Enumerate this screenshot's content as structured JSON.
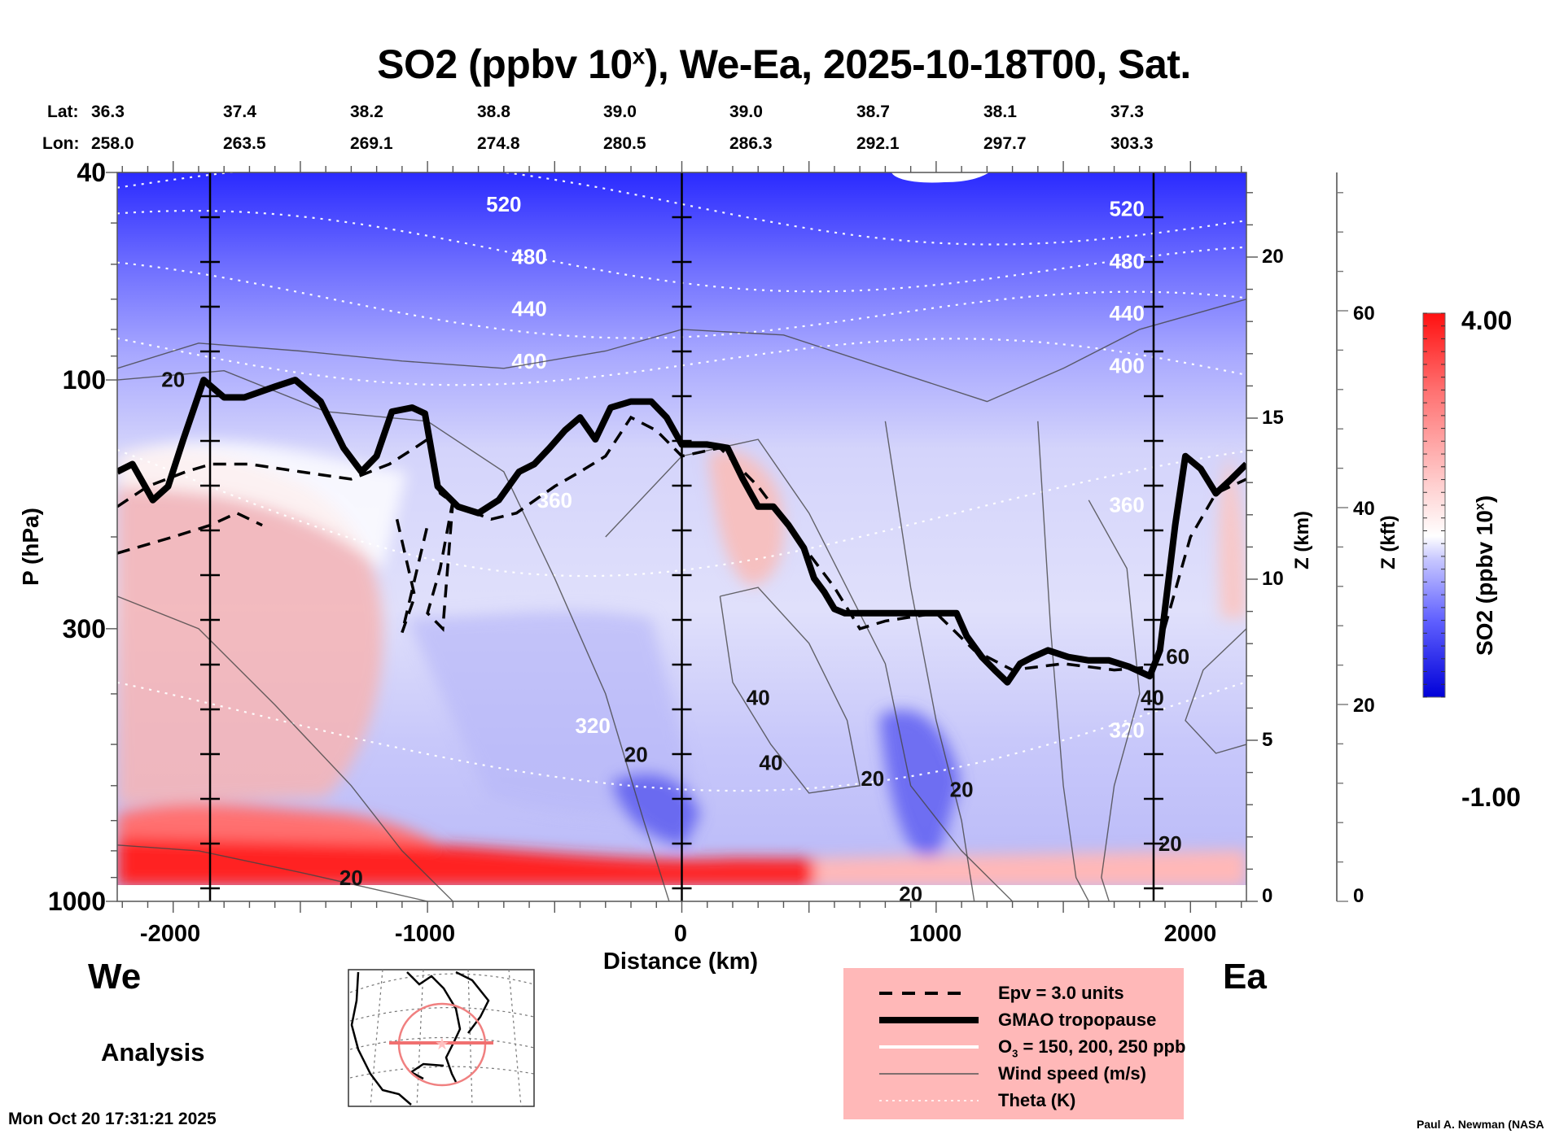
{
  "header": {
    "title_main": "SO2 (ppbv 10",
    "title_sup": "x",
    "title_rest": "), We-Ea, 2025-10-18T00, Sat.",
    "lat_label": "Lat:",
    "lon_label": "Lon:",
    "lats": [
      "36.3",
      "37.4",
      "38.2",
      "38.8",
      "39.0",
      "39.0",
      "38.7",
      "38.1",
      "37.3"
    ],
    "lons": [
      "258.0",
      "263.5",
      "269.1",
      "274.8",
      "280.5",
      "286.3",
      "292.1",
      "297.7",
      "303.3"
    ]
  },
  "footer": {
    "west_label": "We",
    "east_label": "Ea",
    "analysis_label": "Analysis",
    "timestamp": "Mon Oct 20 17:31:21 2025",
    "credit": "Paul A. Newman (NASA"
  },
  "legend": {
    "items": [
      {
        "label": "Epv = 3.0 units",
        "style": "dashed"
      },
      {
        "label": "GMAO tropopause",
        "style": "thick"
      },
      {
        "label": "O3 = 150, 200, 250 ppb",
        "style": "white"
      },
      {
        "label": "Wind speed (m/s)",
        "style": "thin"
      },
      {
        "label": "Theta (K)",
        "style": "dotted"
      }
    ],
    "o3_prefix": "O",
    "o3_sub": "3",
    "o3_rest": " = 150, 200, 250 ppb"
  },
  "colorbar": {
    "label_main": "SO2 (ppbv 10",
    "label_sup": "x",
    "label_end": ")",
    "max_label": "4.00",
    "min_label": "-1.00",
    "min": -1.0,
    "max": 4.0,
    "colors": {
      "low": "#0000e0",
      "mid": "#ffffff",
      "high": "#ff0000"
    }
  },
  "chart_data": {
    "type": "heatmap",
    "title": "SO2 (ppbv 10^x), We-Ea, 2025-10-18T00, Sat.",
    "xlabel": "Distance (km)",
    "ylabel": "P (hPa)",
    "ylabel_right": "Z (km)",
    "ylabel_right2": "Z (kft)",
    "xlim": [
      -2220,
      2220
    ],
    "ylim": [
      1000,
      40
    ],
    "yscale": "log",
    "x_ticks": [
      -2000,
      -1000,
      0,
      1000,
      2000
    ],
    "x_tick_labels": [
      "-2000",
      "-1000",
      "0",
      "1000",
      "2000"
    ],
    "y_ticks": [
      40,
      100,
      300,
      1000
    ],
    "y_tick_labels": [
      "40",
      "100",
      "300",
      "1000"
    ],
    "z_km_ticks": [
      0,
      5,
      10,
      15,
      20
    ],
    "z_km_tick_labels": [
      "0",
      "5",
      "10",
      "15",
      "20"
    ],
    "z_kft_ticks": [
      0,
      20,
      40,
      60
    ],
    "z_kft_tick_labels": [
      "0",
      "20",
      "40",
      "60"
    ],
    "marker_lines_km": [
      -1855,
      0,
      1855
    ],
    "tropopause": {
      "name": "GMAO tropopause",
      "x": [
        -2220,
        -2160,
        -2080,
        -2020,
        -1960,
        -1880,
        -1800,
        -1720,
        -1600,
        -1520,
        -1420,
        -1330,
        -1260,
        -1200,
        -1140,
        -1060,
        -1010,
        -960,
        -880,
        -800,
        -720,
        -640,
        -580,
        -520,
        -460,
        -400,
        -340,
        -280,
        -200,
        -120,
        -60,
        0,
        100,
        180,
        240,
        300,
        360,
        420,
        480,
        520,
        560,
        600,
        640,
        700,
        800,
        900,
        1000,
        1080,
        1120,
        1180,
        1230,
        1280,
        1330,
        1380,
        1440,
        1520,
        1600,
        1680,
        1760,
        1840,
        1880,
        1940,
        1980,
        2040,
        2100,
        2160,
        2220
      ],
      "p": [
        150,
        145,
        170,
        160,
        130,
        100,
        108,
        108,
        103,
        100,
        110,
        135,
        150,
        140,
        115,
        113,
        116,
        160,
        175,
        180,
        170,
        150,
        145,
        135,
        125,
        118,
        130,
        113,
        110,
        110,
        118,
        133,
        133,
        135,
        155,
        175,
        175,
        190,
        210,
        240,
        255,
        275,
        280,
        280,
        280,
        280,
        280,
        280,
        310,
        340,
        360,
        380,
        350,
        340,
        330,
        340,
        345,
        345,
        355,
        370,
        330,
        190,
        140,
        148,
        165,
        155,
        145
      ]
    },
    "theta_isentropes": [
      {
        "label": "520",
        "p_mid": 46
      },
      {
        "label": "480",
        "p_mid": 58
      },
      {
        "label": "440",
        "p_mid": 73
      },
      {
        "label": "400",
        "p_mid": 92
      },
      {
        "label": "360",
        "p_mid": 170
      },
      {
        "label": "320",
        "p_mid": 460
      }
    ],
    "wind_labels": [
      "20",
      "20",
      "40",
      "20",
      "40",
      "20",
      "20",
      "20",
      "60",
      "40",
      "20"
    ],
    "so2_features": [
      {
        "region": "stratosphere top",
        "value": -0.8
      },
      {
        "region": "lower troposphere west boundary layer",
        "value": 3.5
      },
      {
        "region": "surface east",
        "value": 2.5
      },
      {
        "region": "mid troposphere",
        "value": 0.2
      }
    ]
  }
}
